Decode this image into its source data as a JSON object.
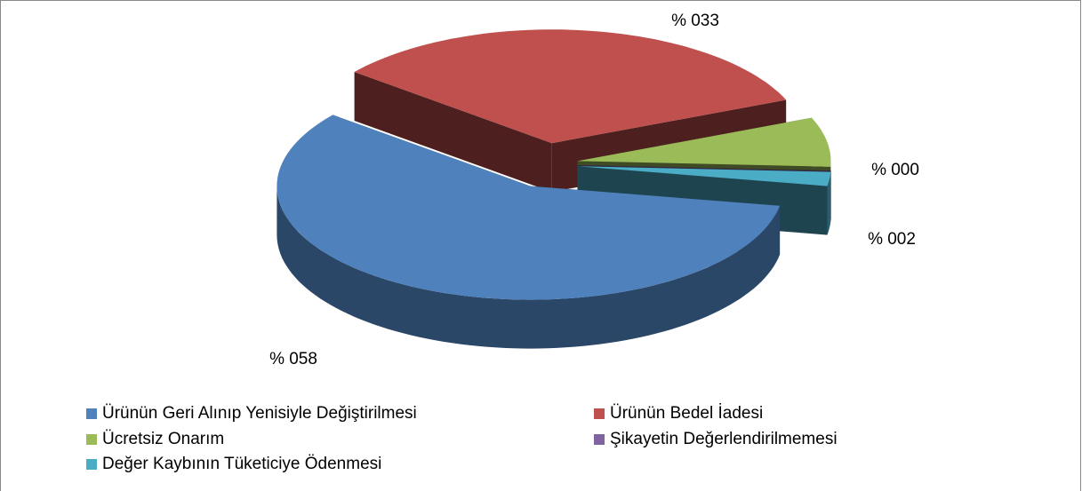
{
  "chart_data": {
    "type": "pie3d",
    "categories": [
      "Ürünün Geri Alınıp Yenisiyle Değiştirilmesi",
      "Ürünün Bedel İadesi",
      "Ücretsiz Onarım",
      "Şikayetin Değerlendirilmemesi",
      "Değer Kaybının Tüketiciye Ödenmesi"
    ],
    "values": [
      58,
      33,
      7,
      0,
      2
    ],
    "value_labels": [
      "% 058",
      "% 033",
      null,
      "% 000",
      "% 002"
    ],
    "colors": [
      "#4f81bd",
      "#c0504d",
      "#9bbb59",
      "#8064a2",
      "#4bacc6"
    ],
    "legend": "bottom"
  }
}
